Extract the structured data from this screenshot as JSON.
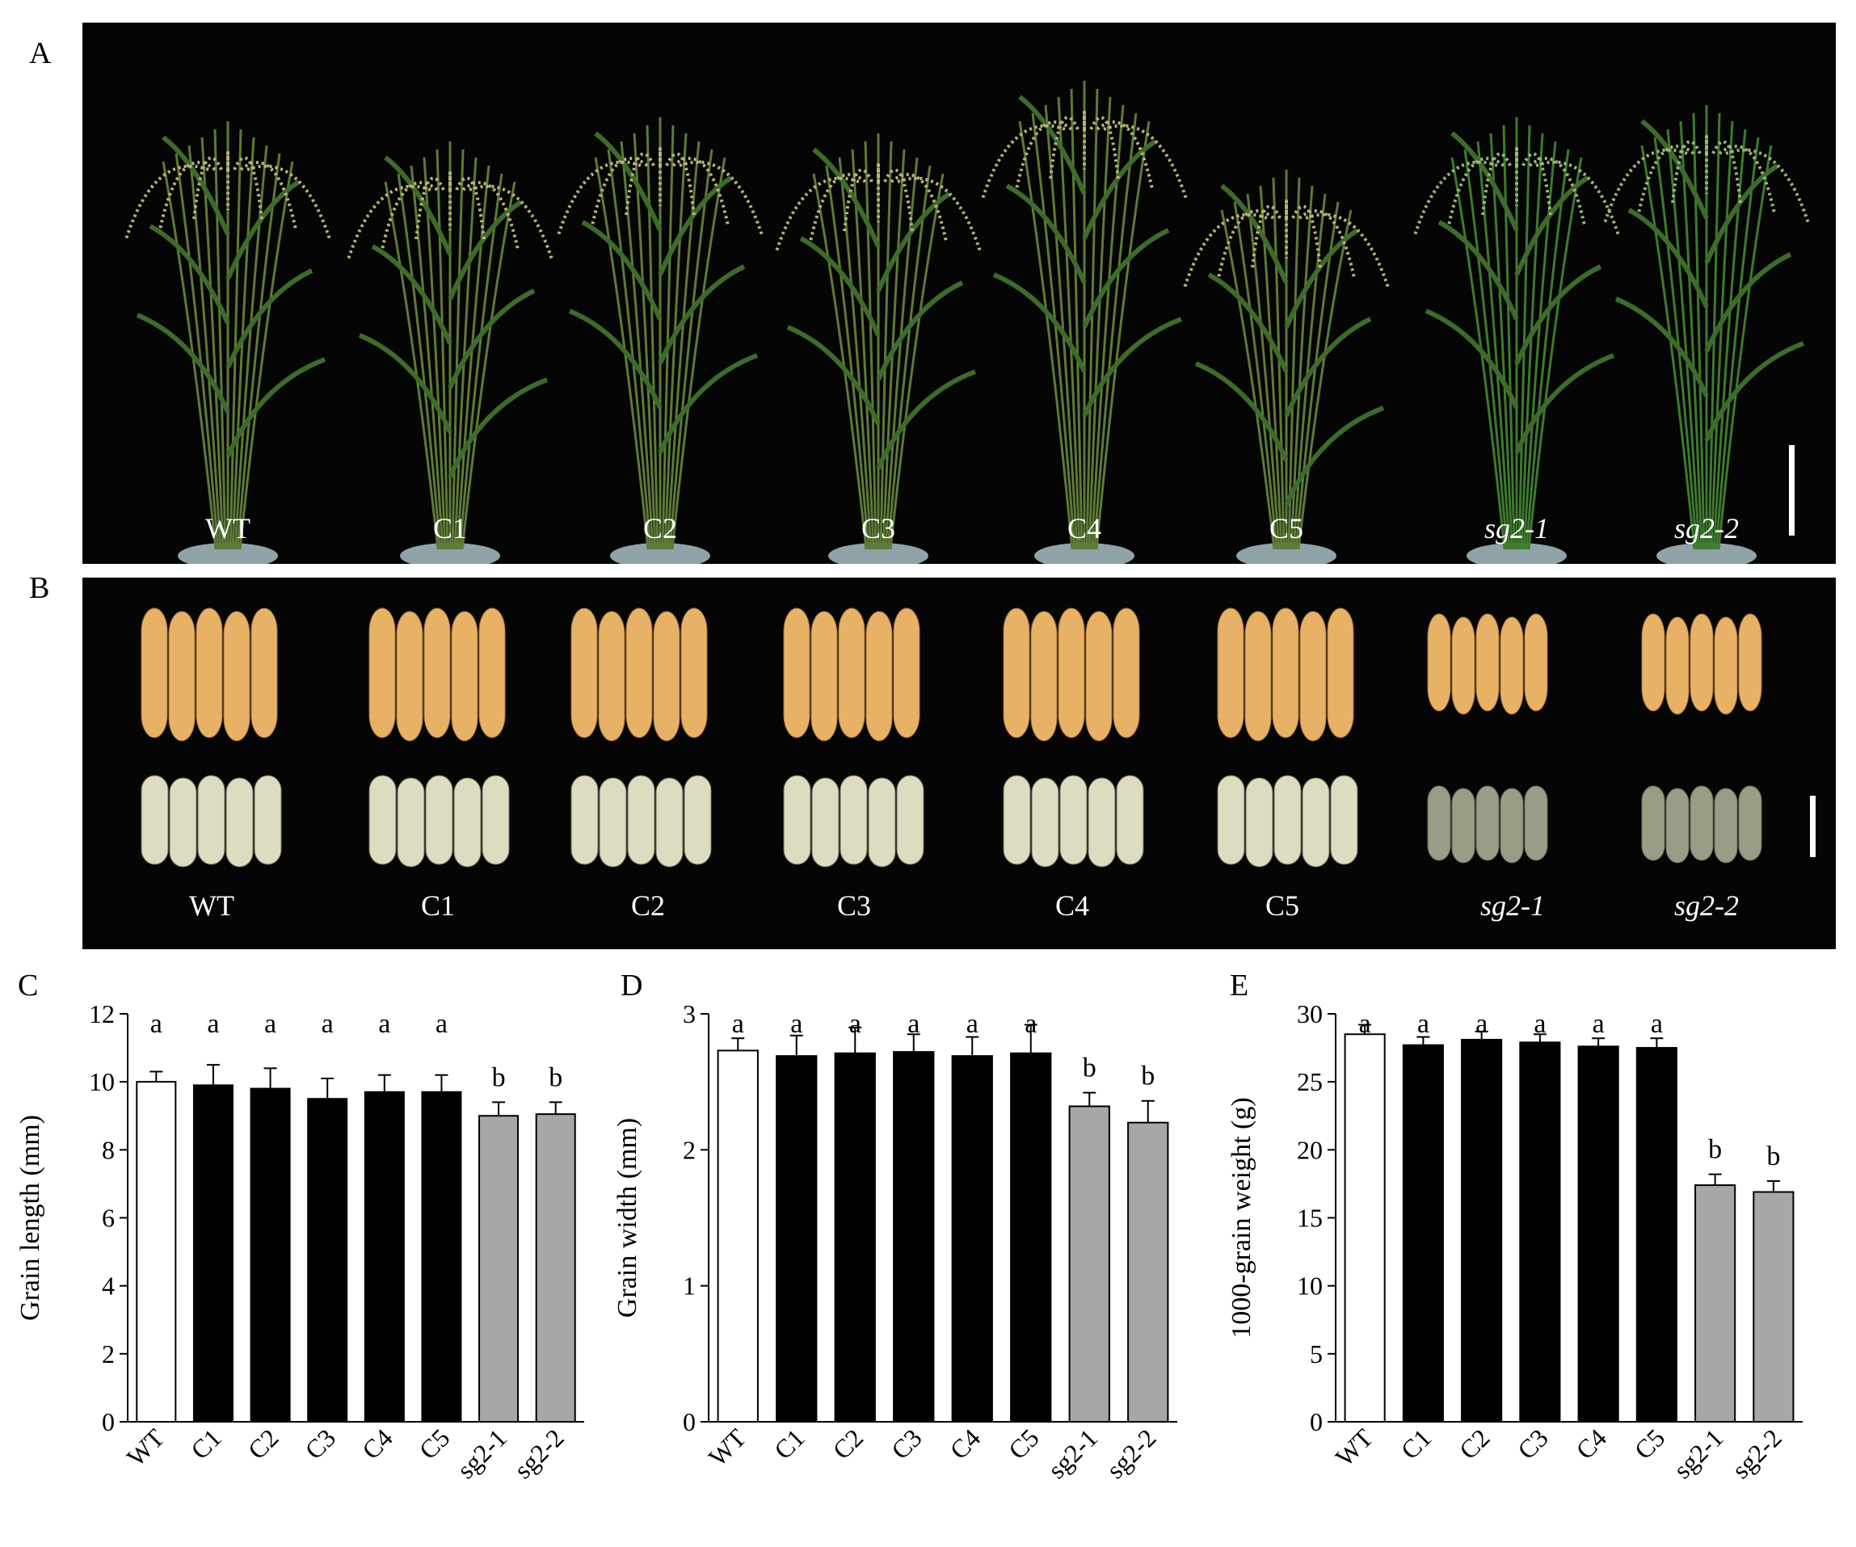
{
  "panels": {
    "A": {
      "letter": "A",
      "labels": [
        "WT",
        "C1",
        "C2",
        "C3",
        "C4",
        "C5",
        "sg2-1",
        "sg2-2"
      ],
      "italic": [
        false,
        false,
        false,
        false,
        false,
        false,
        true,
        true
      ]
    },
    "B": {
      "letter": "B",
      "labels": [
        "WT",
        "C1",
        "C2",
        "C3",
        "C4",
        "C5",
        "sg2-1",
        "sg2-2"
      ],
      "italic": [
        false,
        false,
        false,
        false,
        false,
        false,
        true,
        true
      ]
    }
  },
  "colors": {
    "photo_bg": "#050505",
    "bar_wt": "#ffffff",
    "bar_complement": "#000000",
    "bar_mutant": "#a8a6a6",
    "hull_grain": "#e8b266",
    "brown_rice": "#dedcc0",
    "mutant_brown_rice": "#9a9c86",
    "plant_green": "#3d6b2a"
  },
  "chart_data": [
    {
      "panel": "C",
      "type": "bar",
      "ylabel": "Grain length (mm)",
      "categories": [
        "WT",
        "C1",
        "C2",
        "C3",
        "C4",
        "C5",
        "sg2-1",
        "sg2-2"
      ],
      "values": [
        10.0,
        9.9,
        9.8,
        9.5,
        9.7,
        9.7,
        9.0,
        9.05
      ],
      "errors": [
        0.3,
        0.6,
        0.6,
        0.6,
        0.5,
        0.5,
        0.4,
        0.35
      ],
      "significance": [
        "a",
        "a",
        "a",
        "a",
        "a",
        "a",
        "b",
        "b"
      ],
      "ylim": [
        0,
        12
      ],
      "yticks": [
        0,
        2,
        4,
        6,
        8,
        10,
        12
      ]
    },
    {
      "panel": "D",
      "type": "bar",
      "ylabel": "Grain width (mm)",
      "categories": [
        "WT",
        "C1",
        "C2",
        "C3",
        "C4",
        "C5",
        "sg2-1",
        "sg2-2"
      ],
      "values": [
        2.73,
        2.69,
        2.71,
        2.72,
        2.69,
        2.71,
        2.32,
        2.2
      ],
      "errors": [
        0.09,
        0.15,
        0.19,
        0.13,
        0.14,
        0.21,
        0.1,
        0.16
      ],
      "significance": [
        "a",
        "a",
        "a",
        "a",
        "a",
        "a",
        "b",
        "b"
      ],
      "ylim": [
        0,
        3
      ],
      "yticks": [
        0,
        1,
        2,
        3
      ]
    },
    {
      "panel": "E",
      "type": "bar",
      "ylabel": "1000-grain weight (g)",
      "categories": [
        "WT",
        "C1",
        "C2",
        "C3",
        "C4",
        "C5",
        "sg2-1",
        "sg2-2"
      ],
      "values": [
        28.5,
        27.7,
        28.1,
        27.9,
        27.6,
        27.5,
        17.4,
        16.9
      ],
      "errors": [
        0.7,
        0.6,
        0.6,
        0.6,
        0.6,
        0.7,
        0.8,
        0.8
      ],
      "significance": [
        "a",
        "a",
        "a",
        "a",
        "a",
        "a",
        "b",
        "b"
      ],
      "ylim": [
        0,
        30
      ],
      "yticks": [
        0,
        5,
        10,
        15,
        20,
        25,
        30
      ]
    }
  ]
}
